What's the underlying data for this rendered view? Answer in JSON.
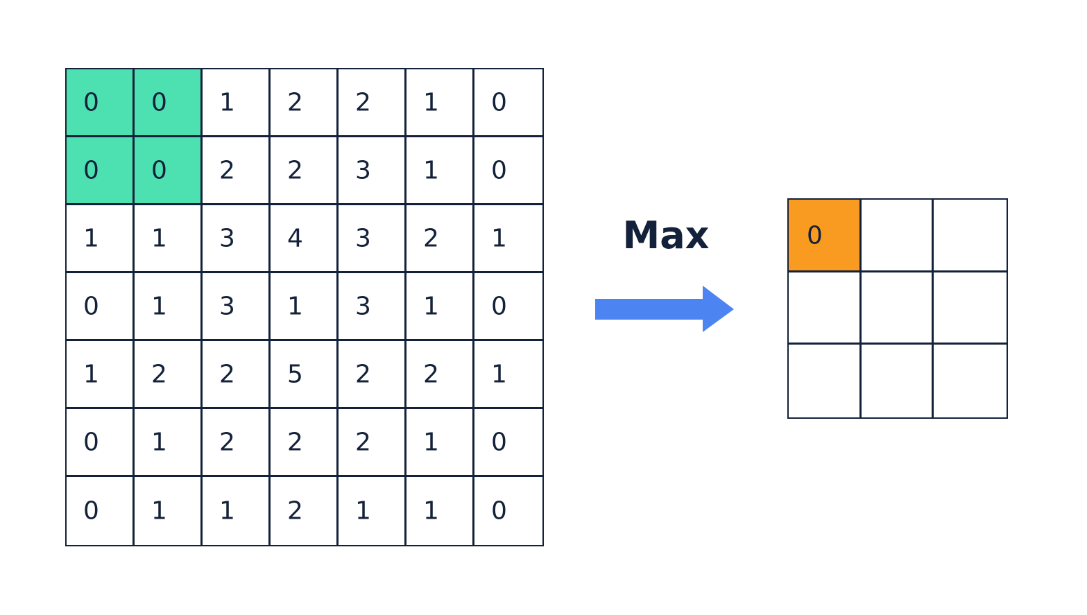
{
  "operation_label": "Max",
  "colors": {
    "window_highlight": "#4de0b1",
    "output_highlight": "#f99b21",
    "arrow": "#4c84f2",
    "border": "#14213a"
  },
  "input_grid": {
    "rows": [
      [
        "0",
        "0",
        "1",
        "2",
        "2",
        "1",
        "0"
      ],
      [
        "0",
        "0",
        "2",
        "2",
        "3",
        "1",
        "0"
      ],
      [
        "1",
        "1",
        "3",
        "4",
        "3",
        "2",
        "1"
      ],
      [
        "0",
        "1",
        "3",
        "1",
        "3",
        "1",
        "0"
      ],
      [
        "1",
        "2",
        "2",
        "5",
        "2",
        "2",
        "1"
      ],
      [
        "0",
        "1",
        "2",
        "2",
        "2",
        "1",
        "0"
      ],
      [
        "0",
        "1",
        "1",
        "2",
        "1",
        "1",
        "0"
      ]
    ],
    "highlighted": [
      [
        0,
        0
      ],
      [
        0,
        1
      ],
      [
        1,
        0
      ],
      [
        1,
        1
      ]
    ]
  },
  "output_grid": {
    "rows": [
      [
        "0",
        "",
        ""
      ],
      [
        "",
        "",
        ""
      ],
      [
        "",
        "",
        ""
      ]
    ],
    "highlighted": [
      [
        0,
        0
      ]
    ]
  }
}
